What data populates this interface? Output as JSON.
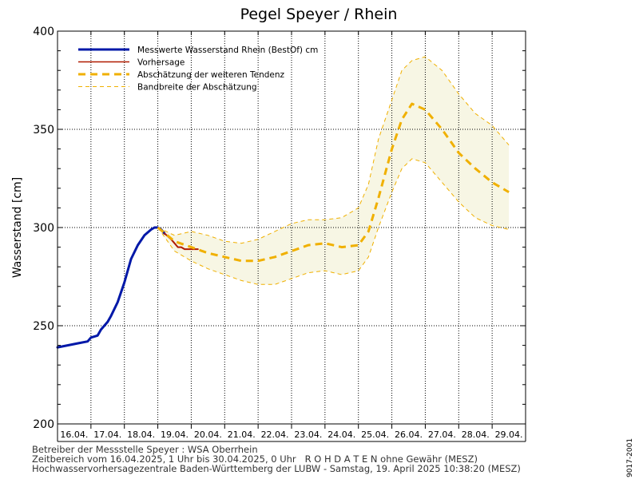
{
  "chart_data": {
    "type": "line",
    "title": "Pegel Speyer / Rhein",
    "ylabel": "Wasserstand [cm]",
    "xlabel": "",
    "ylim": [
      200,
      400
    ],
    "yticks": [
      200,
      250,
      300,
      350,
      400
    ],
    "x_unit": "days since 16.04.2025 00:00",
    "xlim": [
      0,
      14
    ],
    "categories": [
      "16.04.",
      "17.04.",
      "18.04.",
      "19.04.",
      "20.04.",
      "21.04.",
      "22.04.",
      "23.04.",
      "24.04.",
      "25.04.",
      "26.04.",
      "27.04.",
      "28.04.",
      "29.04."
    ],
    "grid": true,
    "legend_position": "top-left",
    "series": [
      {
        "name": "Messwerte Wasserstand Rhein (BestOf)  cm",
        "style": "solid-thick",
        "color": "#0018a8",
        "x": [
          0.0,
          0.3,
          0.6,
          0.9,
          1.0,
          1.2,
          1.3,
          1.5,
          1.6,
          1.8,
          2.0,
          2.2,
          2.4,
          2.6,
          2.8,
          2.9,
          3.0,
          3.1,
          3.2
        ],
        "y": [
          239,
          240,
          241,
          242,
          244,
          245,
          248,
          252,
          255,
          262,
          272,
          284,
          291,
          296,
          299,
          300,
          300,
          299,
          297
        ]
      },
      {
        "name": "Vorhersage",
        "style": "solid",
        "color": "#b01a00",
        "x": [
          3.2,
          3.4,
          3.5,
          3.6,
          3.7,
          3.8,
          4.0,
          4.2
        ],
        "y": [
          297,
          294,
          292,
          290,
          290,
          289,
          289,
          289
        ]
      },
      {
        "name": "Abschätzung der weiteren Tendenz",
        "style": "dashed-thick",
        "color": "#f0b000",
        "x": [
          3.0,
          3.5,
          4.0,
          4.5,
          5.0,
          5.5,
          6.0,
          6.5,
          7.0,
          7.5,
          8.0,
          8.5,
          9.0,
          9.3,
          9.6,
          10.0,
          10.3,
          10.6,
          11.0,
          11.5,
          12.0,
          12.5,
          13.0,
          13.5
        ],
        "y": [
          300,
          293,
          290,
          287,
          285,
          283,
          283,
          285,
          288,
          291,
          292,
          290,
          291,
          298,
          315,
          340,
          355,
          363,
          360,
          350,
          338,
          330,
          323,
          318
        ]
      },
      {
        "name": "Bandbreite der Abschätzung",
        "style": "dashed-thin",
        "color": "#f0b000",
        "fill": "#f7f6e4",
        "x": [
          3.0,
          3.5,
          4.0,
          4.5,
          5.0,
          5.5,
          6.0,
          6.5,
          7.0,
          7.5,
          8.0,
          8.5,
          9.0,
          9.3,
          9.6,
          10.0,
          10.3,
          10.6,
          11.0,
          11.5,
          12.0,
          12.5,
          13.0,
          13.5
        ],
        "upper": [
          300,
          296,
          298,
          296,
          293,
          292,
          294,
          298,
          302,
          304,
          304,
          305,
          310,
          322,
          345,
          365,
          380,
          385,
          387,
          380,
          368,
          358,
          352,
          342
        ],
        "lower": [
          300,
          288,
          283,
          279,
          276,
          273,
          271,
          271,
          274,
          277,
          278,
          276,
          278,
          285,
          300,
          318,
          330,
          335,
          333,
          323,
          313,
          305,
          301,
          299
        ]
      }
    ]
  },
  "footer": {
    "line1": "Betreiber der Messstelle Speyer : WSA Oberrhein",
    "line2": "Zeitbereich vom 16.04.2025, 1 Uhr bis 30.04.2025, 0 Uhr   R O H D A T E N ohne Gewähr (MESZ)",
    "line3": "Hochwasservorhersagezentrale Baden-Württemberg der LUBW - Samstag, 19. April 2025 10:38:20 (MESZ)"
  },
  "side_code": "9017-2001"
}
